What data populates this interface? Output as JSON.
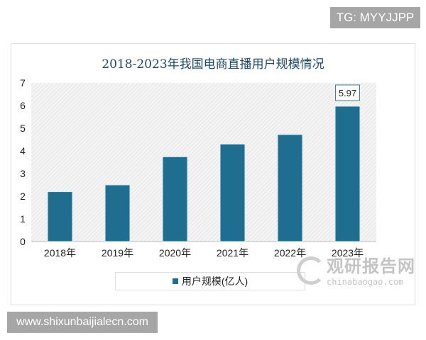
{
  "watermark_top": "TG: MYYJJPP",
  "watermark_bottom": "www.shixunbaijialecn.com",
  "brand_watermark": {
    "name": "观研报告网",
    "url": "chinabaogao.com"
  },
  "chart_data": {
    "type": "bar",
    "title": "2018-2023年我国电商直播用户规模情况",
    "categories": [
      "2018年",
      "2019年",
      "2020年",
      "2021年",
      "2022年",
      "2023年"
    ],
    "series": [
      {
        "name": "用户规模(亿人)",
        "values": [
          2.2,
          2.5,
          3.74,
          4.3,
          4.72,
          5.97
        ],
        "color": "#1f6e8f"
      }
    ],
    "data_labels": [
      {
        "category": "2023年",
        "text": "5.97"
      }
    ],
    "yticks": [
      "0",
      "1",
      "2",
      "3",
      "4",
      "5",
      "6",
      "7"
    ],
    "ylim": [
      0,
      7
    ],
    "xlabel": "",
    "ylabel": "",
    "grid": false,
    "plot_background": "hatched light gray",
    "legend": "bottom"
  }
}
